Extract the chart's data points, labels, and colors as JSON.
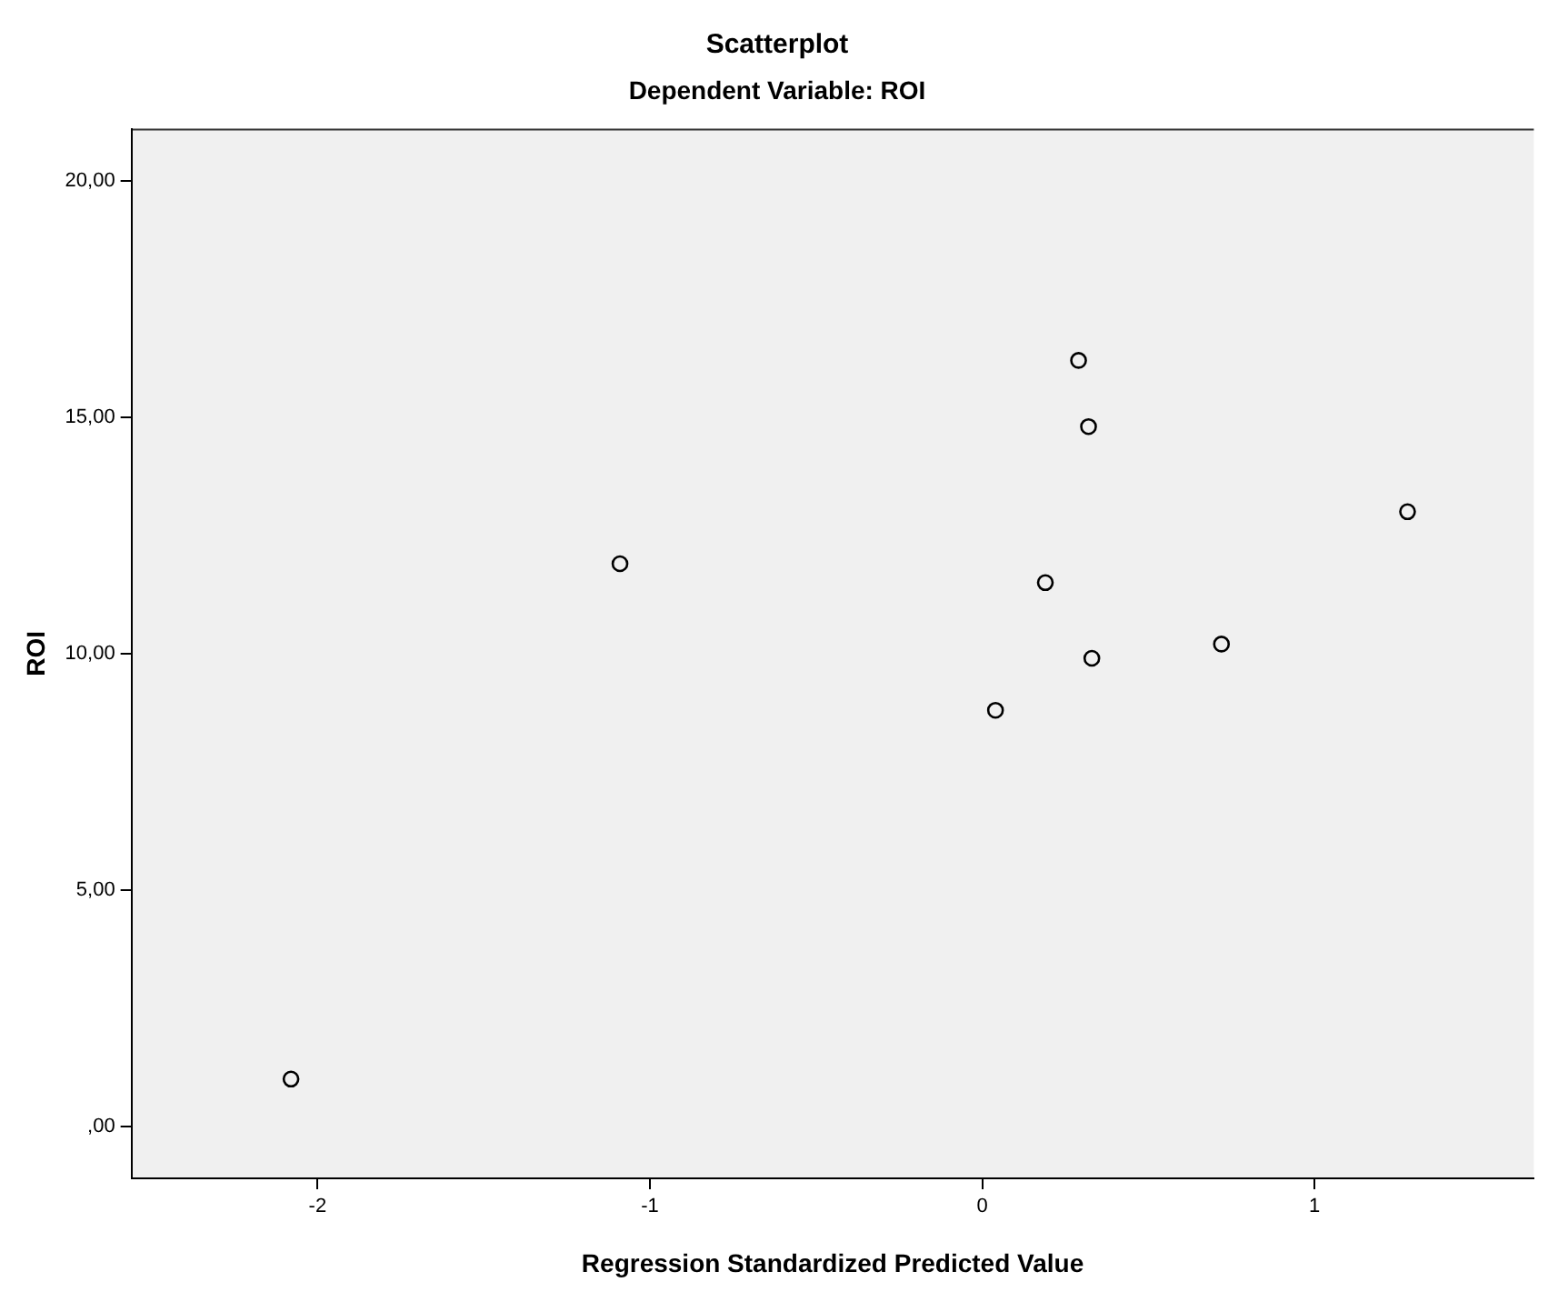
{
  "chart_data": {
    "type": "scatter",
    "title": "Scatterplot",
    "subtitle": "Dependent Variable: ROI",
    "xlabel": "Regression Standardized Predicted Value",
    "ylabel": "ROI",
    "x": [
      0.29,
      0.32,
      1.28,
      -1.09,
      0.19,
      0.72,
      0.33,
      0.04,
      -2.08
    ],
    "values": [
      16.2,
      14.8,
      13.0,
      11.9,
      11.5,
      10.2,
      9.9,
      8.8,
      1.0
    ],
    "color": "#000000",
    "marker": "circle",
    "xlim": [
      -2.56,
      1.66
    ],
    "xticks": [
      -2,
      -1,
      0,
      1
    ],
    "ylim": [
      -1.1,
      21.1
    ],
    "yticks": [
      {
        "value": 0,
        "label": ",00"
      },
      {
        "value": 5,
        "label": "5,00"
      },
      {
        "value": 10,
        "label": "10,00"
      },
      {
        "value": 15,
        "label": "15,00"
      },
      {
        "value": 20,
        "label": "20,00"
      }
    ],
    "grid": false,
    "legend": false
  }
}
